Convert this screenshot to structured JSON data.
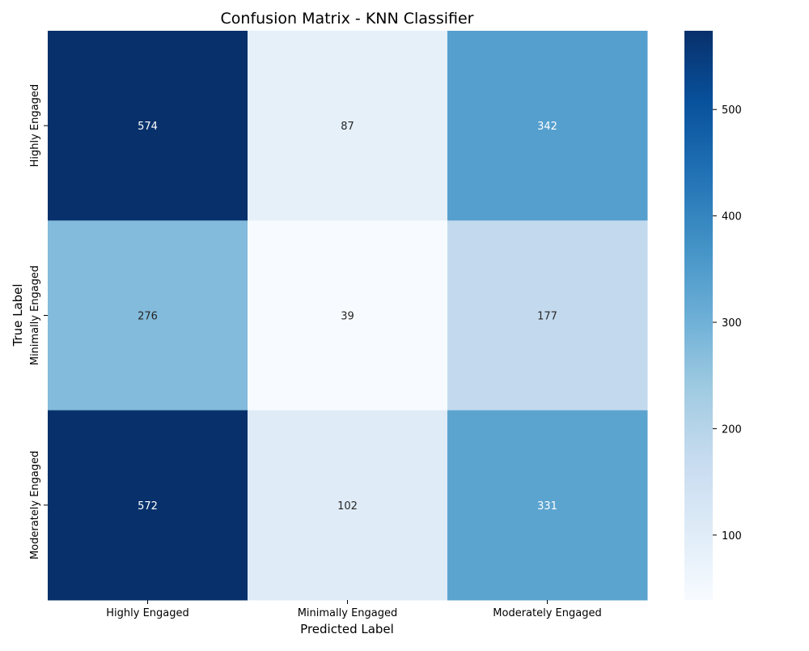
{
  "chart_data": {
    "type": "heatmap",
    "title": "Confusion Matrix - KNN Classifier",
    "xlabel": "Predicted Label",
    "ylabel": "True Label",
    "x_categories": [
      "Highly Engaged",
      "Minimally Engaged",
      "Moderately Engaged"
    ],
    "y_categories": [
      "Highly Engaged",
      "Minimally Engaged",
      "Moderately Engaged"
    ],
    "values": [
      [
        574,
        87,
        342
      ],
      [
        276,
        39,
        177
      ],
      [
        572,
        102,
        331
      ]
    ],
    "colormap": "Blues",
    "colorbar": {
      "min": 39,
      "max": 574,
      "ticks": [
        100,
        200,
        300,
        400,
        500
      ]
    },
    "colors": {
      "low": "#f7fbff",
      "high": "#08306b",
      "text_dark": "#262626",
      "text_light": "#ffffff"
    }
  }
}
